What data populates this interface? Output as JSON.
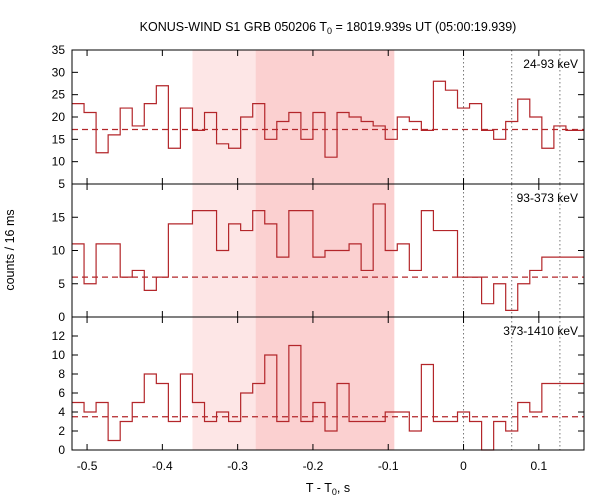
{
  "chart_data": {
    "type": "line",
    "title": {
      "prefix": "KONUS-WIND S1 GRB 050206 T",
      "sub": "0",
      "suffix": " = 18019.939s UT (05:00:19.939)"
    },
    "xlabel": {
      "prefix": "T - T",
      "sub": "0",
      "suffix": ", s"
    },
    "ylabel": "counts / 16 ms",
    "xlim": [
      -0.52,
      0.16
    ],
    "x_ticks": [
      -0.5,
      -0.4,
      -0.3,
      -0.2,
      -0.1,
      0,
      0.1
    ],
    "x_tick_labels": [
      "-0.5",
      "-0.4",
      "-0.3",
      "-0.2",
      "-0.1",
      "0",
      "0.1"
    ],
    "shaded_intervals": [
      {
        "range": [
          -0.36,
          -0.092
        ],
        "level": "light"
      },
      {
        "range": [
          -0.276,
          -0.092
        ],
        "level": "dark"
      }
    ],
    "vertical_lines": [
      {
        "x": 0,
        "style": "dotted"
      },
      {
        "x": 0.064,
        "style": "dotted"
      },
      {
        "x": 0.128,
        "style": "dotted"
      }
    ],
    "bin_edges": [
      -0.52,
      -0.504,
      -0.488,
      -0.472,
      -0.456,
      -0.44,
      -0.424,
      -0.408,
      -0.392,
      -0.376,
      -0.36,
      -0.344,
      -0.328,
      -0.312,
      -0.296,
      -0.28,
      -0.264,
      -0.248,
      -0.232,
      -0.216,
      -0.2,
      -0.184,
      -0.168,
      -0.152,
      -0.136,
      -0.12,
      -0.104,
      -0.088,
      -0.072,
      -0.056,
      -0.04,
      -0.024,
      -0.008,
      0.008,
      0.024,
      0.04,
      0.056,
      0.072,
      0.088,
      0.104,
      0.12,
      0.136,
      0.152,
      0.16
    ],
    "panels": [
      {
        "name": "24-93 keV",
        "ylim": [
          5,
          35
        ],
        "y_ticks": [
          5,
          10,
          15,
          20,
          25,
          30,
          35
        ],
        "background": 17.2,
        "values": [
          23,
          21,
          12,
          16,
          22,
          18,
          23,
          27,
          13,
          22,
          17,
          21,
          14,
          13,
          20,
          23,
          15,
          19,
          21,
          15,
          21,
          11,
          21,
          20,
          19,
          18,
          15,
          20,
          19,
          17,
          28,
          26,
          22,
          23,
          17,
          15,
          19,
          24,
          20,
          13,
          18,
          17,
          17
        ]
      },
      {
        "name": "93-373 keV",
        "ylim": [
          0,
          20
        ],
        "y_ticks": [
          0,
          5,
          10,
          15
        ],
        "background": 6,
        "values": [
          11,
          5,
          11,
          11,
          6,
          7,
          4,
          6,
          14,
          14,
          16,
          16,
          10,
          14,
          13,
          16,
          14,
          9,
          16,
          16,
          9,
          10,
          10,
          11,
          7,
          17,
          10,
          11,
          7,
          16,
          13,
          13,
          6,
          6,
          2,
          5,
          1,
          5,
          7,
          9,
          9,
          9,
          9
        ]
      },
      {
        "name": "373-1410 keV",
        "ylim": [
          0,
          14
        ],
        "y_ticks": [
          0,
          2,
          4,
          6,
          8,
          10,
          12
        ],
        "background": 3.5,
        "values": [
          5,
          4,
          5,
          1,
          3,
          5,
          8,
          7,
          3,
          8,
          5,
          3,
          4,
          3,
          6,
          7,
          10,
          3,
          11,
          3,
          5,
          2,
          7,
          3,
          3,
          3,
          4,
          4,
          2,
          9,
          3,
          3,
          4,
          3,
          0,
          3,
          2,
          5,
          4,
          7,
          7,
          7,
          7
        ]
      }
    ]
  },
  "colors": {
    "line": "#b3262a",
    "shade_light": "#fde6e6",
    "shade_dark": "#fbd0d0",
    "frame": "#000000",
    "vline": "#777777"
  }
}
